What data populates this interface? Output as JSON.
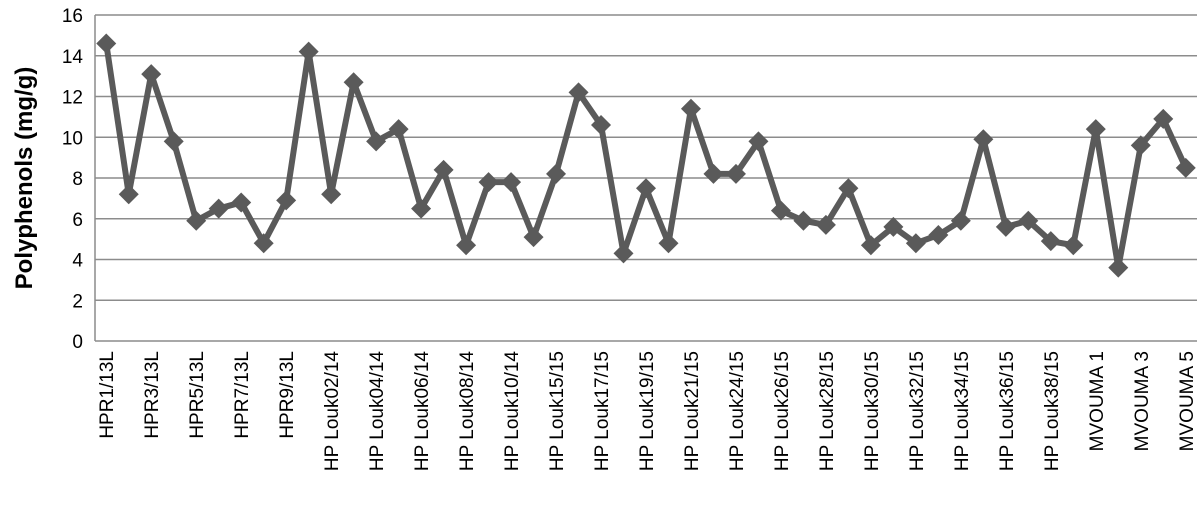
{
  "chart_data": {
    "type": "line",
    "y_label": "Polyphenols (mg/g)",
    "categories": [
      "HPR1/13L",
      null,
      "HPR3/13L",
      null,
      "HPR5/13L",
      null,
      "HPR7/13L",
      null,
      "HPR9/13L",
      null,
      "HP Louk02/14",
      null,
      "HP Louk04/14",
      null,
      "HP Louk06/14",
      null,
      "HP Louk08/14",
      null,
      "HP Louk10/14",
      null,
      "HP Louk15/15",
      null,
      "HP Louk17/15",
      null,
      "HP Louk19/15",
      null,
      "HP Louk21/15",
      null,
      "HP Louk24/15",
      null,
      "HP Louk26/15",
      null,
      "HP Louk28/15",
      null,
      "HP Louk30/15",
      null,
      "HP Louk32/15",
      null,
      "HP Louk34/15",
      null,
      "HP Louk36/15",
      null,
      "HP Louk38/15",
      null,
      "MVOUMA 1",
      null,
      "MVOUMA 3",
      null,
      "MVOUMA 5"
    ],
    "values": [
      14.6,
      7.2,
      13.1,
      9.8,
      5.9,
      6.5,
      6.8,
      4.8,
      6.9,
      14.2,
      7.2,
      12.7,
      9.8,
      10.4,
      6.5,
      8.4,
      4.7,
      7.8,
      7.8,
      5.1,
      8.2,
      12.2,
      10.6,
      4.3,
      7.5,
      4.8,
      11.4,
      8.2,
      8.2,
      9.8,
      6.4,
      5.9,
      5.7,
      7.5,
      4.7,
      5.6,
      4.8,
      5.2,
      5.9,
      9.9,
      5.6,
      5.9,
      4.9,
      4.7,
      10.4,
      3.6,
      9.6,
      10.9,
      8.5
    ],
    "color": "#5a5a5a",
    "ylim": [
      0,
      16
    ],
    "yticks": [
      0,
      2,
      4,
      6,
      8,
      10,
      12,
      14,
      16
    ],
    "grid": true
  }
}
